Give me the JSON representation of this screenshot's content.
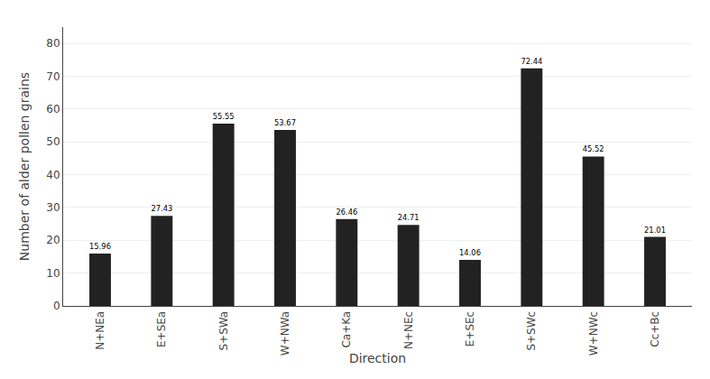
{
  "chart_data": {
    "type": "bar",
    "categories": [
      "N+NEa",
      "E+SEa",
      "S+SWa",
      "W+NWa",
      "Ca+Ka",
      "N+NEc",
      "E+SEc",
      "S+SWc",
      "W+NWc",
      "Cc+Bc"
    ],
    "values": [
      15.96,
      27.43,
      55.55,
      53.67,
      26.46,
      24.71,
      14.06,
      72.44,
      45.52,
      21.01
    ],
    "color": "#222222",
    "xlabel": "Direction",
    "ylabel": "Number of alder pollen grains",
    "ylim": [
      0,
      85
    ],
    "yticks": [
      0,
      10,
      20,
      30,
      40,
      50,
      60,
      70,
      80
    ],
    "grid": true,
    "data_labels": true
  }
}
